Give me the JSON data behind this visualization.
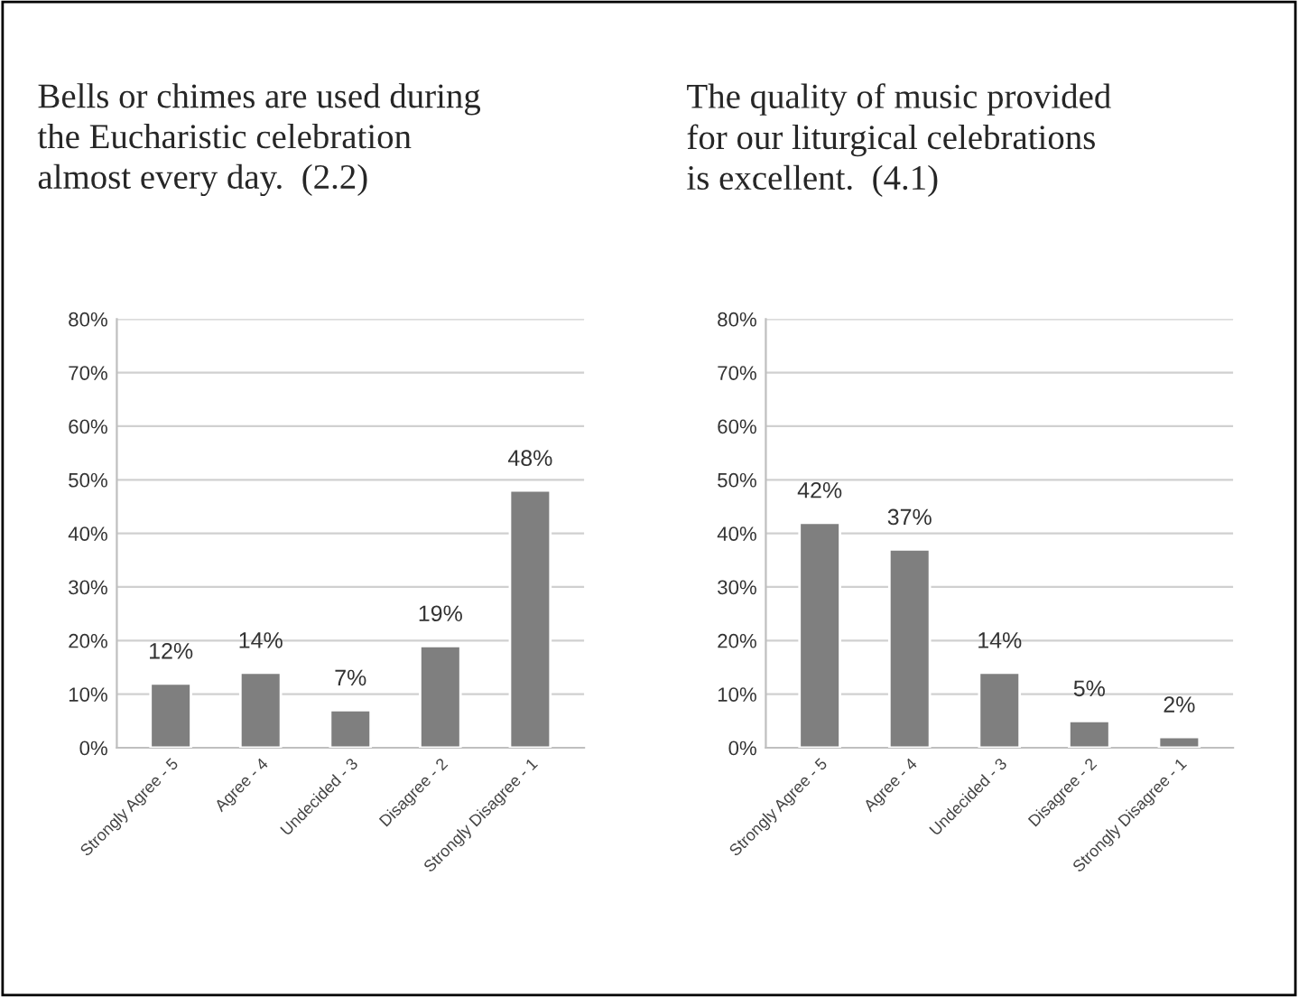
{
  "chart_data": [
    {
      "type": "bar",
      "title": "Bells or chimes are used during\nthe Eucharistic celebration\nalmost every day.  (2.2)",
      "categories": [
        "Strongly Agree - 5",
        "Agree - 4",
        "Undecided - 3",
        "Disagree - 2",
        "Strongly Disagree - 1"
      ],
      "values": [
        12,
        14,
        7,
        19,
        48
      ],
      "value_labels": [
        "12%",
        "14%",
        "7%",
        "19%",
        "48%"
      ],
      "color": "#7f7f7f",
      "ylim": [
        0,
        80
      ],
      "yticks": [
        {
          "value": 0,
          "label": "0%"
        },
        {
          "value": 10,
          "label": "10%"
        },
        {
          "value": 20,
          "label": "20%"
        },
        {
          "value": 30,
          "label": "30%"
        },
        {
          "value": 40,
          "label": "40%"
        },
        {
          "value": 50,
          "label": "50%"
        },
        {
          "value": 60,
          "label": "60%"
        },
        {
          "value": 70,
          "label": "70%"
        },
        {
          "value": 80,
          "label": "80%"
        }
      ],
      "grid": "y",
      "legend": false
    },
    {
      "type": "bar",
      "title": "The quality of music provided\nfor our liturgical celebrations\nis excellent.  (4.1)",
      "categories": [
        "Strongly Agree - 5",
        "Agree - 4",
        "Undecided - 3",
        "Disagree - 2",
        "Strongly Disagree - 1"
      ],
      "values": [
        42,
        37,
        14,
        5,
        2
      ],
      "value_labels": [
        "42%",
        "37%",
        "14%",
        "5%",
        "2%"
      ],
      "color": "#7f7f7f",
      "ylim": [
        0,
        80
      ],
      "yticks": [
        {
          "value": 0,
          "label": "0%"
        },
        {
          "value": 10,
          "label": "10%"
        },
        {
          "value": 20,
          "label": "20%"
        },
        {
          "value": 30,
          "label": "30%"
        },
        {
          "value": 40,
          "label": "40%"
        },
        {
          "value": 50,
          "label": "50%"
        },
        {
          "value": 60,
          "label": "60%"
        },
        {
          "value": 70,
          "label": "70%"
        },
        {
          "value": 80,
          "label": "80%"
        }
      ],
      "grid": "y",
      "legend": false
    }
  ]
}
